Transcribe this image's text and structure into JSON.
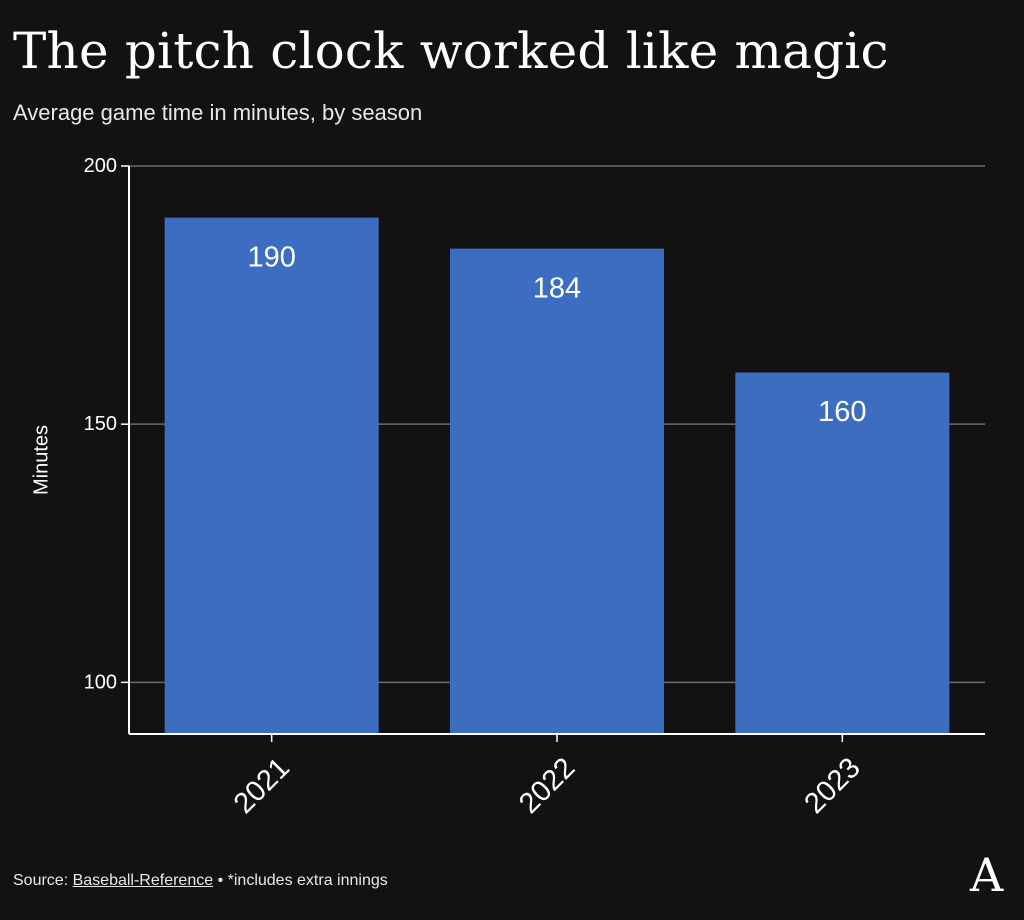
{
  "title": "The pitch clock worked like magic",
  "subtitle": "Average game time in minutes, by season",
  "footer": {
    "source_prefix": "Source:",
    "source_link": "Baseball-Reference",
    "separator": "•",
    "note": "*includes extra innings"
  },
  "logo": {
    "letter": "A",
    "icon": "the-athletic-logo"
  },
  "colors": {
    "background": "#121212",
    "bar": "#3d6dc0",
    "text": "#ffffff",
    "grid": "#6b6b6b"
  },
  "chart_data": {
    "type": "bar",
    "categories": [
      "2021",
      "2022",
      "2023"
    ],
    "values": [
      190,
      184,
      160
    ],
    "data_labels": [
      "190",
      "184",
      "160"
    ],
    "ylabel": "Minutes",
    "xlabel": "",
    "ylim": [
      90,
      200
    ],
    "yticks": [
      100,
      150,
      200
    ],
    "ytick_labels": [
      "100",
      "150",
      "200"
    ],
    "grid": true,
    "xtick_rotation_deg": -45
  }
}
